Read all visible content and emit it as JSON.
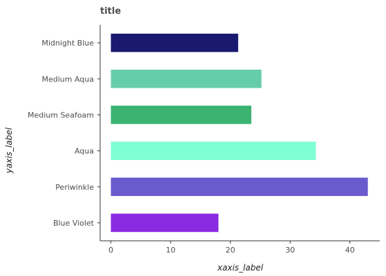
{
  "chart_data": {
    "type": "bar",
    "orientation": "horizontal",
    "title": "title",
    "xlabel": "xaxis_label",
    "ylabel": "yaxis_label",
    "categories": [
      "Blue Violet",
      "Periwinkle",
      "Aqua",
      "Medium Seafoam",
      "Medium Aqua",
      "Midnight Blue"
    ],
    "values": [
      18,
      43,
      34.3,
      23.5,
      25.2,
      21.3
    ],
    "colors": [
      "#8a2be2",
      "#6a5acd",
      "#7fffd4",
      "#3cb371",
      "#66cdaa",
      "#191970"
    ],
    "xlim": [
      -1.8,
      45
    ],
    "xticks": [
      0,
      10,
      20,
      30,
      40
    ],
    "grid": false,
    "legend": "none"
  }
}
